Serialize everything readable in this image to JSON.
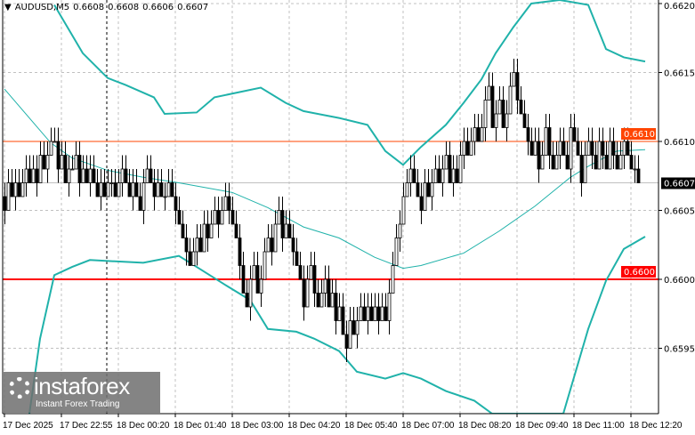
{
  "header": {
    "symbol": "AUDUSD,M5",
    "open": "0.6608",
    "high": "0.6608",
    "low": "0.6606",
    "close": "0.6607"
  },
  "logo": {
    "name": "instaforex",
    "tagline": "Instant Forex Trading"
  },
  "colors": {
    "candle": "#000000",
    "bands": "#20b2aa",
    "level_upper": "#ff4500",
    "level_lower": "#ff0000",
    "current_price_bg": "#000000",
    "grid": "#c0c0c0"
  },
  "chart_data": {
    "type": "candlestick",
    "symbol": "AUDUSD",
    "timeframe": "M5",
    "ylim": [
      0.659,
      0.662
    ],
    "y_ticks": [
      "0.6620",
      "0.6615",
      "0.6610",
      "0.6605",
      "0.6600",
      "0.6595"
    ],
    "x_ticks": [
      "17 Dec 2025",
      "17 Dec 22:55",
      "18 Dec 00:20",
      "18 Dec 01:40",
      "18 Dec 03:00",
      "18 Dec 04:20",
      "18 Dec 05:40",
      "18 Dec 07:00",
      "18 Dec 08:20",
      "18 Dec 09:40",
      "18 Dec 11:00",
      "18 Dec 12:20"
    ],
    "grid": true,
    "first_open": 0.6606,
    "closes": [
      0.6605,
      0.6607,
      0.6606,
      0.6607,
      0.6606,
      0.6607,
      0.6608,
      0.6607,
      0.6608,
      0.6607,
      0.6609,
      0.6608,
      0.6609,
      0.661,
      0.661,
      0.6608,
      0.6609,
      0.6607,
      0.6608,
      0.6608,
      0.6609,
      0.6607,
      0.6608,
      0.6607,
      0.6608,
      0.6607,
      0.6606,
      0.6607,
      0.6606,
      0.6607,
      0.6607,
      0.6606,
      0.6607,
      0.6608,
      0.6607,
      0.6606,
      0.6607,
      0.6606,
      0.6605,
      0.6607,
      0.6608,
      0.6607,
      0.6606,
      0.6607,
      0.6606,
      0.6606,
      0.6607,
      0.6606,
      0.6605,
      0.6604,
      0.6603,
      0.6602,
      0.6601,
      0.6602,
      0.6603,
      0.6602,
      0.6604,
      0.6603,
      0.6604,
      0.6605,
      0.6604,
      0.6605,
      0.6606,
      0.6605,
      0.6604,
      0.6603,
      0.6601,
      0.6599,
      0.6598,
      0.66,
      0.6601,
      0.6599,
      0.66,
      0.6602,
      0.6603,
      0.6602,
      0.6604,
      0.6605,
      0.6603,
      0.6604,
      0.6603,
      0.6602,
      0.6601,
      0.66,
      0.6598,
      0.66,
      0.6601,
      0.6599,
      0.6598,
      0.6599,
      0.66,
      0.6598,
      0.6599,
      0.6597,
      0.6598,
      0.6596,
      0.6595,
      0.6597,
      0.6596,
      0.6597,
      0.6598,
      0.6597,
      0.6598,
      0.6597,
      0.6598,
      0.6597,
      0.6598,
      0.6597,
      0.6599,
      0.6601,
      0.6603,
      0.6604,
      0.6606,
      0.6607,
      0.6608,
      0.6607,
      0.6606,
      0.6605,
      0.6607,
      0.6606,
      0.6607,
      0.6608,
      0.6607,
      0.6608,
      0.6609,
      0.6607,
      0.6608,
      0.6607,
      0.6609,
      0.661,
      0.6609,
      0.661,
      0.6611,
      0.661,
      0.6611,
      0.6613,
      0.6614,
      0.6611,
      0.6612,
      0.6613,
      0.6611,
      0.6612,
      0.6614,
      0.6615,
      0.6613,
      0.6612,
      0.6611,
      0.661,
      0.6609,
      0.661,
      0.6608,
      0.6609,
      0.6611,
      0.6609,
      0.6608,
      0.6609,
      0.661,
      0.6609,
      0.6608,
      0.6611,
      0.661,
      0.6609,
      0.6607,
      0.6609,
      0.661,
      0.6609,
      0.6608,
      0.661,
      0.6609,
      0.6608,
      0.661,
      0.6609,
      0.6608,
      0.6609,
      0.661,
      0.6609,
      0.6608,
      0.6608,
      0.6607
    ],
    "bands": {
      "upper": [
        [
          14,
          0.66199
        ],
        [
          22,
          0.66164
        ],
        [
          29,
          0.66146
        ],
        [
          34,
          0.66141
        ],
        [
          42,
          0.66132
        ],
        [
          45,
          0.6612
        ],
        [
          54,
          0.66121
        ],
        [
          59,
          0.66132
        ],
        [
          72,
          0.66139
        ],
        [
          79,
          0.66128
        ],
        [
          84,
          0.66122
        ],
        [
          94,
          0.66117
        ],
        [
          102,
          0.66112
        ],
        [
          107,
          0.66093
        ],
        [
          112,
          0.66083
        ],
        [
          117,
          0.66096
        ],
        [
          124,
          0.66112
        ],
        [
          129,
          0.66128
        ],
        [
          134,
          0.66145
        ],
        [
          138,
          0.66164
        ],
        [
          143,
          0.66183
        ],
        [
          148,
          0.662
        ],
        [
          156,
          0.6623
        ],
        [
          164,
          0.66199
        ],
        [
          169,
          0.66167
        ],
        [
          174,
          0.66161
        ],
        [
          180,
          0.66158
        ]
      ],
      "middle": [
        [
          0,
          0.66138
        ],
        [
          13,
          0.66099
        ],
        [
          19,
          0.66088
        ],
        [
          29,
          0.66079
        ],
        [
          39,
          0.66074
        ],
        [
          49,
          0.6607
        ],
        [
          64,
          0.66063
        ],
        [
          74,
          0.66052
        ],
        [
          84,
          0.66038
        ],
        [
          94,
          0.6603
        ],
        [
          104,
          0.66016
        ],
        [
          112,
          0.66008
        ],
        [
          117,
          0.6601
        ],
        [
          129,
          0.66019
        ],
        [
          139,
          0.66035
        ],
        [
          149,
          0.66053
        ],
        [
          159,
          0.66074
        ],
        [
          164,
          0.66082
        ],
        [
          172,
          0.66093
        ],
        [
          180,
          0.66094
        ]
      ],
      "lower": [
        [
          7,
          0.65899
        ],
        [
          10,
          0.65957
        ],
        [
          14,
          0.66003
        ],
        [
          19,
          0.66009
        ],
        [
          24,
          0.66014
        ],
        [
          39,
          0.66012
        ],
        [
          49,
          0.66017
        ],
        [
          54,
          0.66009
        ],
        [
          62,
          0.65996
        ],
        [
          69,
          0.65985
        ],
        [
          74,
          0.65964
        ],
        [
          82,
          0.65962
        ],
        [
          87,
          0.65957
        ],
        [
          94,
          0.65948
        ],
        [
          99,
          0.65933
        ],
        [
          107,
          0.65928
        ],
        [
          112,
          0.65932
        ],
        [
          117,
          0.65928
        ],
        [
          124,
          0.65919
        ],
        [
          132,
          0.65912
        ],
        [
          137,
          0.65902
        ],
        [
          147,
          0.6587
        ],
        [
          157,
          0.65902
        ],
        [
          164,
          0.65964
        ],
        [
          169,
          0.65999
        ],
        [
          174,
          0.66022
        ],
        [
          180,
          0.66031
        ]
      ]
    },
    "levels": [
      {
        "price": 0.661,
        "label": "0.6610",
        "color": "#ff4500"
      },
      {
        "price": 0.66,
        "label": "0.6600",
        "color": "#ff0000"
      }
    ],
    "current_price": {
      "price": 0.6607,
      "label": "0.6607"
    }
  }
}
